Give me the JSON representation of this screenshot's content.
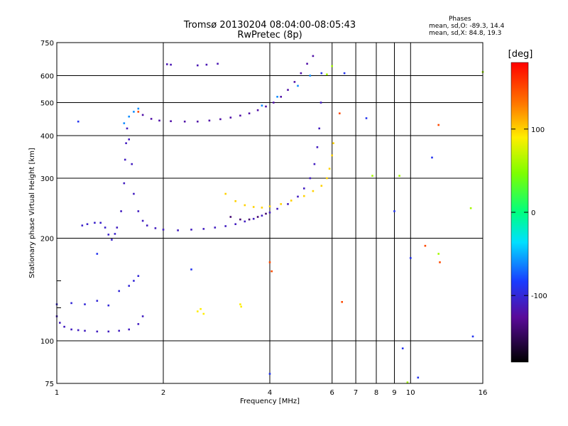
{
  "title_line1": "Tromsø 20130204 08:04:00-08:05:43",
  "title_line2": "RwPretec (8p)",
  "phase_info": {
    "heading": "Phases",
    "line_o": "mean, sd,O: -89.3, 14.4",
    "line_x": "mean, sd,X:  84.8, 19.3"
  },
  "colorbar": {
    "label": "[deg]",
    "ticks": [
      {
        "value": 100,
        "label": "100"
      },
      {
        "value": 0,
        "label": "0"
      },
      {
        "value": -100,
        "label": "-100"
      }
    ],
    "range": [
      -180,
      180
    ]
  },
  "chart_data": {
    "type": "scatter",
    "title": "Tromsø 20130204 08:04:00-08:05:43",
    "subtitle": "RwPretec (8p)",
    "xlabel": "Frequency [MHz]",
    "ylabel": "Stationary phase Virtual Height [km]",
    "x_scale": "log",
    "y_scale": "log",
    "xlim": [
      1,
      16
    ],
    "ylim": [
      75,
      750
    ],
    "x_ticks": [
      1,
      2,
      4,
      6,
      8,
      10,
      16
    ],
    "x_minor_ticks": [
      7,
      9
    ],
    "y_ticks": [
      75,
      100,
      200,
      300,
      400,
      500,
      600,
      750
    ],
    "y_minor_ticks": [
      125,
      150
    ],
    "grid": true,
    "color_variable": "phase [deg]",
    "series": [
      {
        "phase": -110,
        "points": [
          [
            1.0,
            118
          ],
          [
            1.02,
            113
          ],
          [
            1.05,
            110
          ],
          [
            1.1,
            108
          ],
          [
            1.15,
            107.5
          ],
          [
            1.2,
            107
          ],
          [
            1.3,
            106.5
          ],
          [
            1.4,
            106.5
          ],
          [
            1.5,
            107
          ],
          [
            1.6,
            108
          ],
          [
            1.7,
            112
          ],
          [
            1.75,
            118
          ]
        ]
      },
      {
        "phase": -105,
        "points": [
          [
            1.18,
            218
          ],
          [
            1.22,
            220
          ],
          [
            1.28,
            222
          ],
          [
            1.33,
            222
          ],
          [
            1.37,
            215
          ],
          [
            1.4,
            205
          ],
          [
            1.43,
            198
          ],
          [
            1.46,
            206
          ]
        ]
      },
      {
        "phase": -110,
        "points": [
          [
            1.48,
            215
          ],
          [
            1.52,
            240
          ],
          [
            1.55,
            290
          ],
          [
            1.56,
            340
          ],
          [
            1.57,
            380
          ],
          [
            1.58,
            420
          ],
          [
            1.6,
            390
          ],
          [
            1.63,
            330
          ],
          [
            1.65,
            270
          ],
          [
            1.7,
            240
          ],
          [
            1.75,
            225
          ],
          [
            1.8,
            218
          ],
          [
            1.9,
            214
          ],
          [
            2.0,
            212
          ],
          [
            2.2,
            211
          ],
          [
            2.4,
            212
          ],
          [
            2.6,
            213
          ],
          [
            2.8,
            215
          ],
          [
            3.0,
            217
          ],
          [
            3.2,
            220
          ],
          [
            3.4,
            224
          ],
          [
            3.6,
            228
          ],
          [
            3.8,
            233
          ],
          [
            4.0,
            238
          ],
          [
            4.2,
            244
          ],
          [
            4.5,
            252
          ],
          [
            4.8,
            265
          ],
          [
            5.0,
            280
          ],
          [
            5.2,
            300
          ],
          [
            5.35,
            330
          ],
          [
            5.45,
            370
          ],
          [
            5.52,
            420
          ],
          [
            5.58,
            500
          ]
        ]
      },
      {
        "phase": -120,
        "points": [
          [
            1.75,
            460
          ],
          [
            1.85,
            448
          ],
          [
            1.95,
            443
          ],
          [
            2.1,
            441
          ],
          [
            2.3,
            440
          ],
          [
            2.5,
            440
          ],
          [
            2.7,
            443
          ],
          [
            2.9,
            447
          ],
          [
            3.1,
            452
          ],
          [
            3.3,
            458
          ],
          [
            3.5,
            465
          ],
          [
            3.7,
            475
          ],
          [
            3.9,
            487
          ],
          [
            4.1,
            500
          ],
          [
            4.3,
            520
          ],
          [
            4.5,
            545
          ],
          [
            4.7,
            575
          ],
          [
            4.9,
            610
          ],
          [
            5.1,
            650
          ],
          [
            5.3,
            685
          ]
        ]
      },
      {
        "phase": 100,
        "points": [
          [
            3.0,
            270
          ],
          [
            3.2,
            257
          ],
          [
            3.4,
            250
          ],
          [
            3.6,
            247
          ],
          [
            3.8,
            246
          ],
          [
            4.0,
            248
          ],
          [
            4.3,
            252
          ],
          [
            4.6,
            258
          ],
          [
            5.0,
            266
          ],
          [
            5.3,
            275
          ],
          [
            5.6,
            285
          ],
          [
            5.8,
            300
          ],
          [
            5.9,
            320
          ],
          [
            6.0,
            350
          ],
          [
            6.05,
            380
          ]
        ]
      },
      {
        "phase": -140,
        "points": [
          [
            3.1,
            231
          ],
          [
            3.3,
            227
          ],
          [
            3.5,
            227
          ],
          [
            3.7,
            231
          ],
          [
            3.9,
            236
          ]
        ]
      },
      {
        "phase": -115,
        "points": [
          [
            2.05,
            648
          ],
          [
            2.1,
            646
          ],
          [
            2.5,
            643
          ],
          [
            2.65,
            646
          ],
          [
            2.85,
            650
          ]
        ]
      },
      {
        "phase": -100,
        "points": [
          [
            1.0,
            128
          ],
          [
            1.1,
            129
          ],
          [
            1.2,
            128
          ],
          [
            1.3,
            131
          ],
          [
            1.4,
            127
          ],
          [
            1.5,
            140
          ],
          [
            1.6,
            145
          ],
          [
            1.65,
            150
          ],
          [
            1.7,
            155
          ]
        ]
      },
      {
        "phase": 90,
        "points": [
          [
            2.5,
            122
          ],
          [
            2.55,
            124
          ],
          [
            2.6,
            120
          ],
          [
            3.3,
            128
          ],
          [
            3.32,
            126
          ]
        ]
      },
      {
        "phase": -60,
        "points": [
          [
            1.55,
            435
          ],
          [
            1.6,
            455
          ],
          [
            1.65,
            470
          ],
          [
            1.7,
            480
          ],
          [
            3.8,
            490
          ],
          [
            4.2,
            520
          ],
          [
            4.8,
            560
          ],
          [
            5.2,
            600
          ]
        ]
      },
      {
        "phase": 150,
        "points": [
          [
            1.7,
            470
          ],
          [
            4.0,
            170
          ],
          [
            4.05,
            160
          ],
          [
            6.3,
            465
          ],
          [
            6.4,
            130
          ],
          [
            11.0,
            190
          ],
          [
            12.0,
            430
          ],
          [
            12.1,
            170
          ]
        ]
      },
      {
        "phase": -90,
        "points": [
          [
            1.15,
            440
          ],
          [
            1.3,
            180
          ],
          [
            2.4,
            162
          ],
          [
            4.0,
            80
          ],
          [
            5.6,
            610
          ],
          [
            6.5,
            610
          ],
          [
            7.5,
            450
          ],
          [
            9.0,
            240
          ],
          [
            9.5,
            95
          ],
          [
            10.0,
            175
          ],
          [
            10.5,
            78
          ],
          [
            11.5,
            345
          ],
          [
            15.0,
            103
          ]
        ]
      },
      {
        "phase": 60,
        "points": [
          [
            5.8,
            605
          ],
          [
            6.0,
            640
          ],
          [
            7.8,
            305
          ],
          [
            9.3,
            305
          ],
          [
            9.8,
            75.5
          ],
          [
            12.0,
            180
          ],
          [
            14.8,
            245
          ],
          [
            16.0,
            615
          ]
        ]
      }
    ]
  }
}
